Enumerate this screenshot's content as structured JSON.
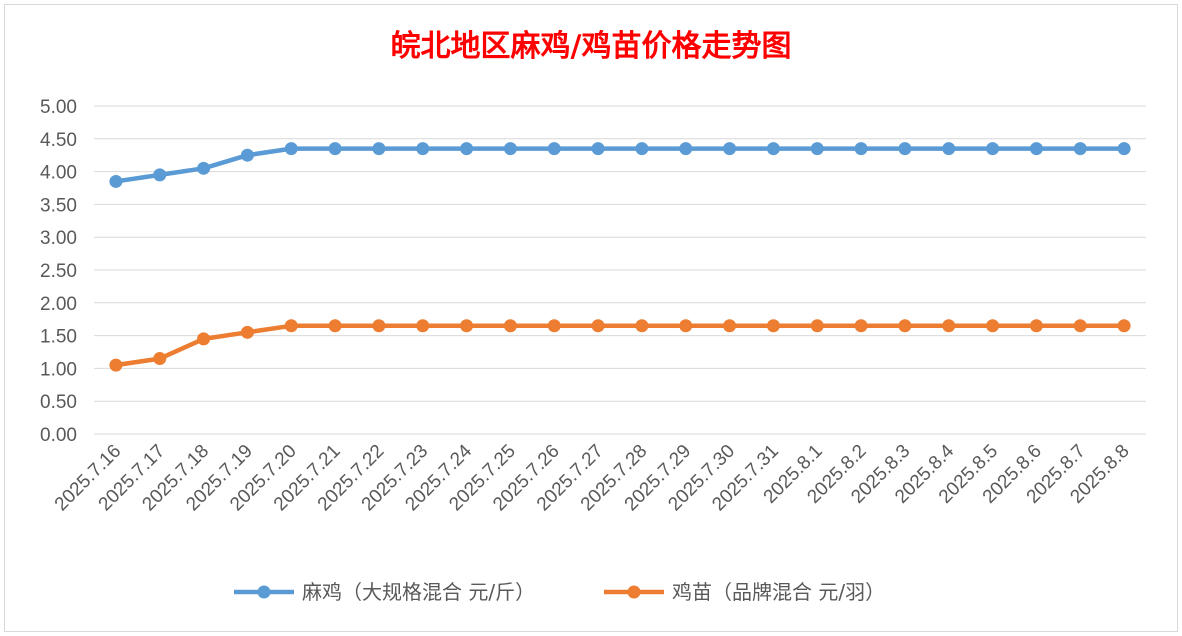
{
  "colors": {
    "title": "#ff0000",
    "series_1": "#5b9bd5",
    "series_2": "#ed7d31",
    "grid": "#d9d9d9",
    "tick_text": "#595959"
  },
  "chart_data": {
    "type": "line",
    "title": "皖北地区麻鸡/鸡苗价格走势图",
    "xlabel": "",
    "ylabel": "",
    "ylim": [
      0,
      5
    ],
    "y_ticks": [
      "0.00",
      "0.50",
      "1.00",
      "1.50",
      "2.00",
      "2.50",
      "3.00",
      "3.50",
      "4.00",
      "4.50",
      "5.00"
    ],
    "grid": true,
    "legend_position": "bottom",
    "categories": [
      "2025.7.16",
      "2025.7.17",
      "2025.7.18",
      "2025.7.19",
      "2025.7.20",
      "2025.7.21",
      "2025.7.22",
      "2025.7.23",
      "2025.7.24",
      "2025.7.25",
      "2025.7.26",
      "2025.7.27",
      "2025.7.28",
      "2025.7.29",
      "2025.7.30",
      "2025.7.31",
      "2025.8.1",
      "2025.8.2",
      "2025.8.3",
      "2025.8.4",
      "2025.8.5",
      "2025.8.6",
      "2025.8.7",
      "2025.8.8"
    ],
    "series": [
      {
        "name": "麻鸡（大规格混合 元/斤）",
        "color": "#5b9bd5",
        "values": [
          3.85,
          3.95,
          4.05,
          4.25,
          4.35,
          4.35,
          4.35,
          4.35,
          4.35,
          4.35,
          4.35,
          4.35,
          4.35,
          4.35,
          4.35,
          4.35,
          4.35,
          4.35,
          4.35,
          4.35,
          4.35,
          4.35,
          4.35,
          4.35
        ]
      },
      {
        "name": "鸡苗（品牌混合 元/羽）",
        "color": "#ed7d31",
        "values": [
          1.05,
          1.15,
          1.45,
          1.55,
          1.65,
          1.65,
          1.65,
          1.65,
          1.65,
          1.65,
          1.65,
          1.65,
          1.65,
          1.65,
          1.65,
          1.65,
          1.65,
          1.65,
          1.65,
          1.65,
          1.65,
          1.65,
          1.65,
          1.65
        ]
      }
    ]
  }
}
